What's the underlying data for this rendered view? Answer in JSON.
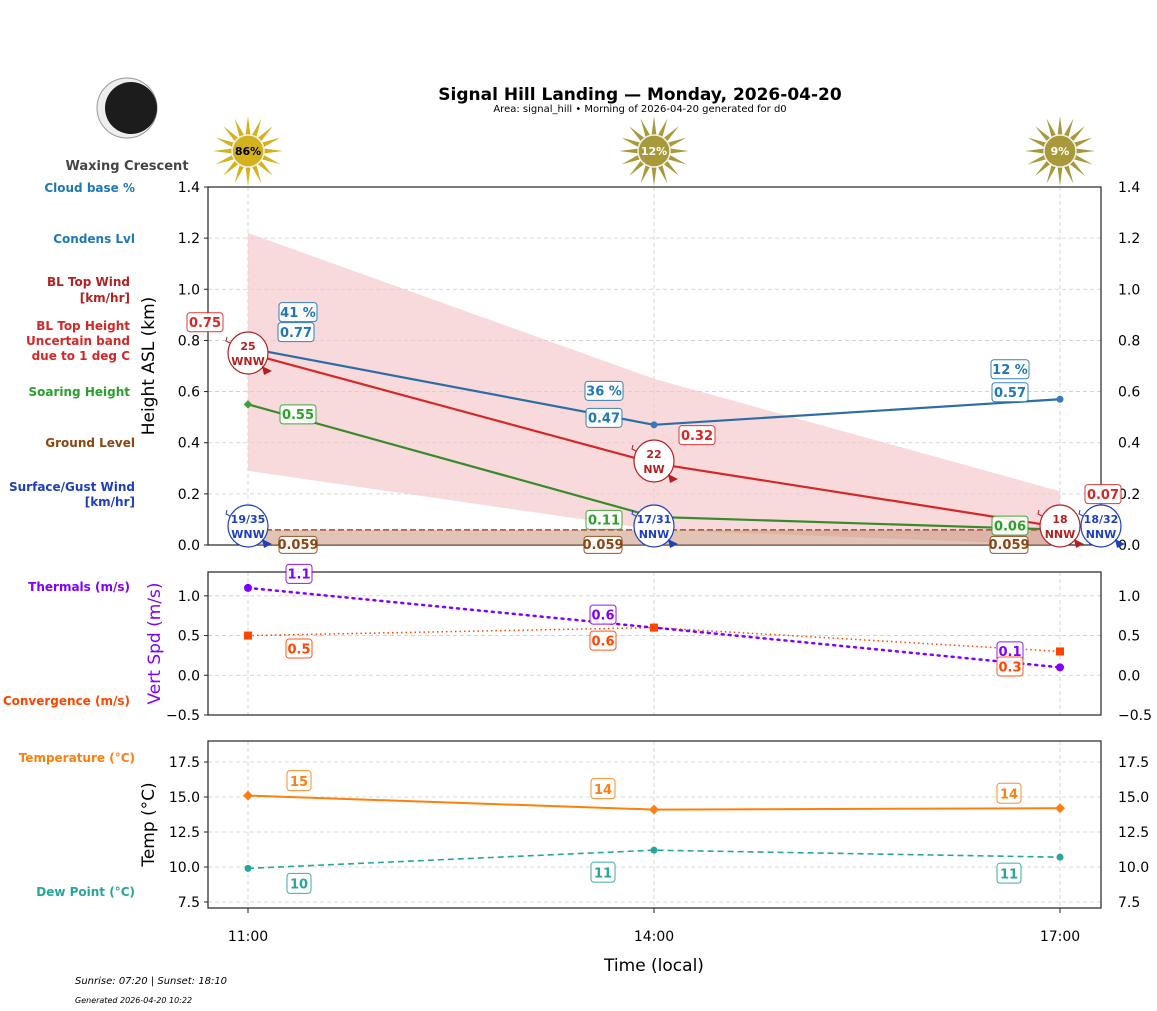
{
  "header": {
    "title": "Signal Hill Landing — Monday, 2026-04-20",
    "subtitle": "Area: signal_hill • Morning of 2026-04-20 generated for d0",
    "moon_phase": "Waxing Crescent"
  },
  "footer": {
    "sun_times": "Sunrise: 07:20 | Sunset: 18:10",
    "generated": "Generated 2026-04-20 10:22"
  },
  "side_labels": {
    "cloud_base": "Cloud base %",
    "condens": "Condens Lvl",
    "bl_wind_1": "BL Top Wind",
    "bl_wind_2": "[km/hr]",
    "bl_height_1": "BL Top Height",
    "bl_height_2": "Uncertain band",
    "bl_height_3": "due to 1 deg C",
    "soaring": "Soaring Height",
    "ground": "Ground Level",
    "surface_1": "Surface/Gust Wind",
    "surface_2": "[km/hr]",
    "thermals": "Thermals (m/s)",
    "convergence": "Convergence (m/s)",
    "temperature": "Temperature (°C)",
    "dewpoint": "Dew Point (°C)"
  },
  "colors": {
    "cloud": "#1f77b4",
    "bl": "#d62728",
    "bl_dark": "#b22222",
    "band": "#f5c6cb",
    "soaring": "#2ca02c",
    "ground": "#8b4513",
    "surface": "#1f3fbf",
    "thermal": "#8000ff",
    "conv": "#ff4500",
    "temp": "#ff7f0e",
    "dew": "#26a69a",
    "sun_bright": "#d4b21c",
    "sun_dim": "#a89a3a"
  },
  "chart_data": [
    {
      "type": "line",
      "ylabel": "Height ASL (km)",
      "ylim": [
        0,
        1.4
      ],
      "yticks": [
        "0.0",
        "0.2",
        "0.4",
        "0.6",
        "0.8",
        "1.0",
        "1.2",
        "1.4"
      ],
      "x": [
        11,
        14,
        17
      ],
      "sun_percent": [
        "86%",
        "12%",
        "9%"
      ],
      "series": [
        {
          "name": "Condens Lvl",
          "values": [
            0.77,
            0.47,
            0.57
          ],
          "labels": [
            "0.77",
            "0.47",
            "0.57"
          ],
          "cloud_pct": [
            "41 %",
            "36 %",
            "12 %"
          ]
        },
        {
          "name": "BL Top Height",
          "values": [
            0.75,
            0.32,
            0.07
          ],
          "labels": [
            "0.75",
            "0.32",
            "0.07"
          ],
          "band_upper": [
            1.22,
            0.65,
            0.21
          ],
          "band_lower": [
            0.29,
            0.06,
            0.0
          ]
        },
        {
          "name": "Soaring Height",
          "values": [
            0.55,
            0.11,
            0.06
          ],
          "labels": [
            "0.55",
            "0.11",
            "0.06"
          ]
        },
        {
          "name": "Ground Level",
          "values": [
            0.059,
            0.059,
            0.059
          ],
          "labels": [
            "0.059",
            "0.059",
            "0.059"
          ]
        }
      ],
      "bl_wind": [
        {
          "speed": "25",
          "dir": "WNW"
        },
        {
          "speed": "22",
          "dir": "NW"
        },
        {
          "speed": "18",
          "dir": "NNW"
        }
      ],
      "surface_wind": [
        {
          "speed": "19/35",
          "dir": "WNW"
        },
        {
          "speed": "17/31",
          "dir": "NNW"
        },
        {
          "speed": "18/32",
          "dir": "NNW"
        }
      ]
    },
    {
      "type": "line",
      "ylabel": "Vert Spd (m/s)",
      "ylim": [
        -0.5,
        1.3
      ],
      "yticks": [
        "−0.5",
        "0.0",
        "0.5",
        "1.0"
      ],
      "x": [
        11,
        14,
        17
      ],
      "series": [
        {
          "name": "Thermals (m/s)",
          "values": [
            1.1,
            0.6,
            0.1
          ],
          "labels": [
            "1.1",
            "0.6",
            "0.1"
          ]
        },
        {
          "name": "Convergence (m/s)",
          "values": [
            0.5,
            0.6,
            0.3
          ],
          "labels": [
            "0.5",
            "0.6",
            "0.3"
          ]
        }
      ]
    },
    {
      "type": "line",
      "ylabel": "Temp (°C)",
      "xlabel": "Time (local)",
      "xticks": [
        "11:00",
        "14:00",
        "17:00"
      ],
      "ylim": [
        7.07,
        19.0
      ],
      "yticks": [
        "7.5",
        "10.0",
        "12.5",
        "15.0",
        "17.5"
      ],
      "x": [
        11,
        14,
        17
      ],
      "series": [
        {
          "name": "Temperature (°C)",
          "values": [
            15.1,
            14.1,
            14.2
          ],
          "labels": [
            "15",
            "14",
            "14"
          ]
        },
        {
          "name": "Dew Point (°C)",
          "values": [
            9.9,
            11.2,
            10.7
          ],
          "labels": [
            "10",
            "11",
            "11"
          ]
        }
      ]
    }
  ]
}
